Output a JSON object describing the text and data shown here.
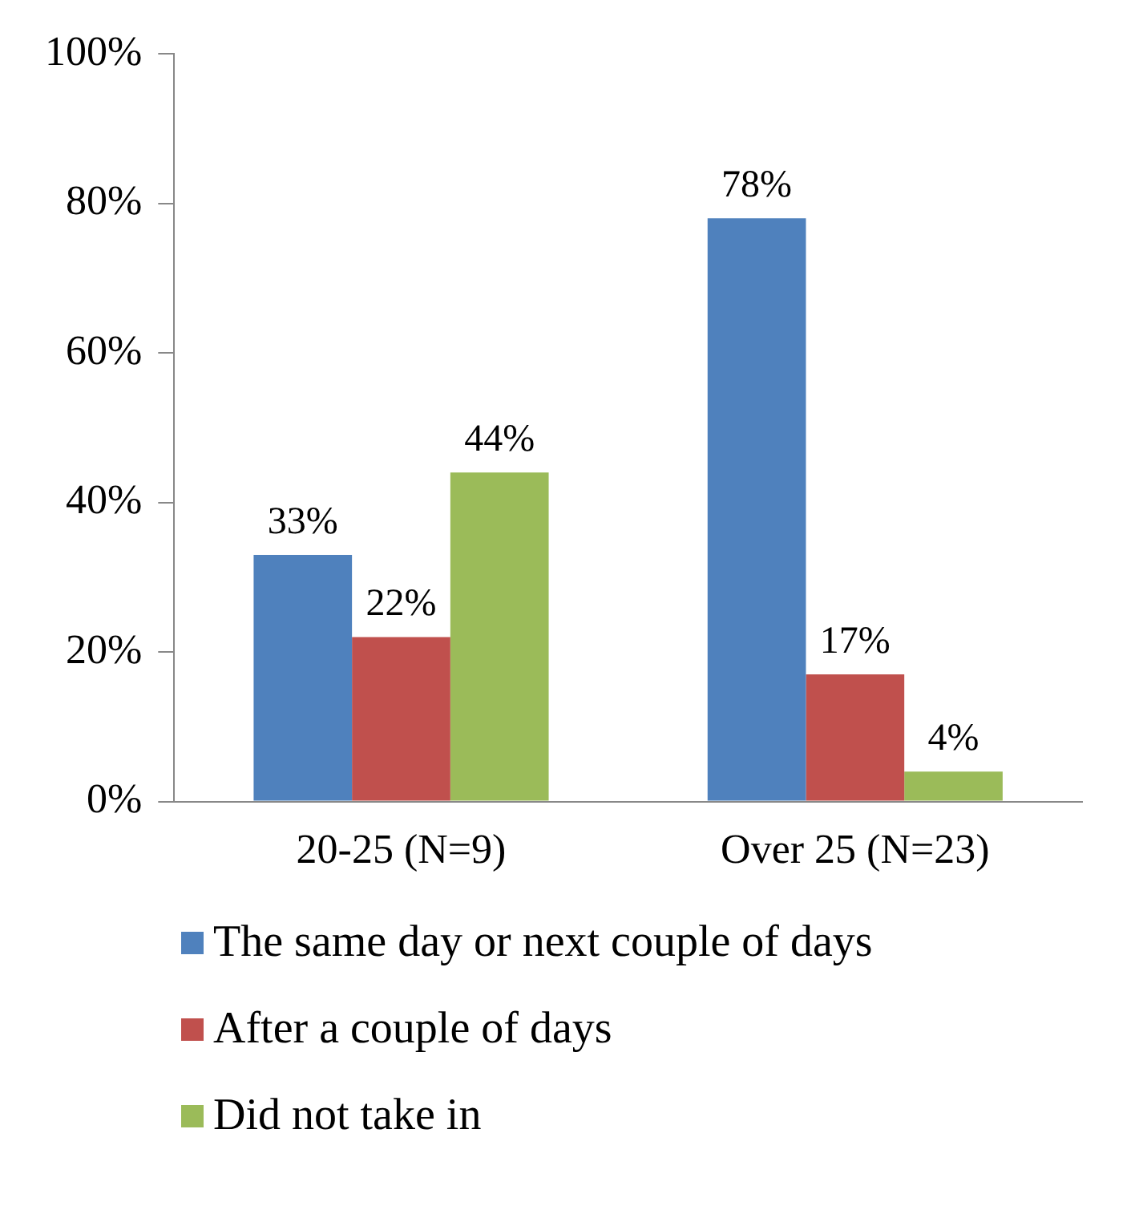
{
  "chart_data": {
    "type": "bar",
    "categories": [
      "20-25 (N=9)",
      "Over 25 (N=23)"
    ],
    "series": [
      {
        "name": "The same day or next couple of days",
        "color": "#4f81bd",
        "values": [
          33,
          78
        ],
        "value_labels": [
          "33%",
          "78%"
        ]
      },
      {
        "name": "After a couple of days",
        "color": "#c0504d",
        "values": [
          22,
          17
        ],
        "value_labels": [
          "22%",
          "17%"
        ]
      },
      {
        "name": "Did not take in",
        "color": "#9bbb59",
        "values": [
          44,
          4
        ],
        "value_labels": [
          "44%",
          "4%"
        ]
      }
    ],
    "ylim": [
      0,
      100
    ],
    "yticks": [
      {
        "value": 0,
        "label": "0%"
      },
      {
        "value": 20,
        "label": "20%"
      },
      {
        "value": 40,
        "label": "40%"
      },
      {
        "value": 60,
        "label": "60%"
      },
      {
        "value": 80,
        "label": "80%"
      },
      {
        "value": 100,
        "label": "100%"
      }
    ],
    "legend": "bottom",
    "grid": false
  }
}
